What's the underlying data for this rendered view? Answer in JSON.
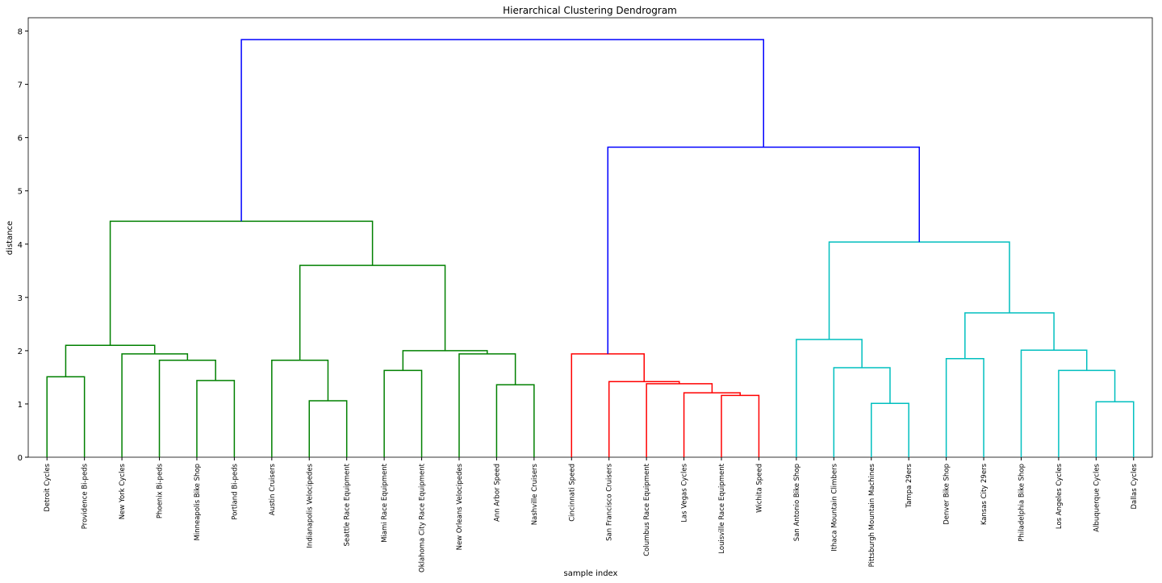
{
  "chart_data": {
    "type": "dendrogram",
    "title": "Hierarchical Clustering Dendrogram",
    "x_label": "sample index",
    "y_label": "distance",
    "ylim": [
      0,
      8.25
    ],
    "yticks": [
      0,
      1,
      2,
      3,
      4,
      5,
      6,
      7,
      8
    ],
    "tree": {
      "height": 7.84,
      "color": "#0000ff",
      "children": [
        {
          "height": 4.43,
          "color": "#008000",
          "children": [
            {
              "height": 2.1,
              "color": "#008000",
              "children": [
                {
                  "height": 1.51,
                  "color": "#008000",
                  "children": [
                    {
                      "label": "Detroit Cycles"
                    },
                    {
                      "label": "Providence Bi-peds"
                    }
                  ]
                },
                {
                  "height": 1.94,
                  "color": "#008000",
                  "children": [
                    {
                      "label": "New York Cycles"
                    },
                    {
                      "height": 1.82,
                      "color": "#008000",
                      "children": [
                        {
                          "label": "Phoenix Bi-peds"
                        },
                        {
                          "height": 1.44,
                          "color": "#008000",
                          "children": [
                            {
                              "label": "Minneapolis Bike Shop"
                            },
                            {
                              "label": "Portland Bi-peds"
                            }
                          ]
                        }
                      ]
                    }
                  ]
                }
              ]
            },
            {
              "height": 3.6,
              "color": "#008000",
              "children": [
                {
                  "height": 1.82,
                  "color": "#008000",
                  "children": [
                    {
                      "label": "Austin Cruisers"
                    },
                    {
                      "height": 1.06,
                      "color": "#008000",
                      "children": [
                        {
                          "label": "Indianapolis Velocipedes"
                        },
                        {
                          "label": "Seattle Race Equipment"
                        }
                      ]
                    }
                  ]
                },
                {
                  "height": 2.0,
                  "color": "#008000",
                  "children": [
                    {
                      "height": 1.63,
                      "color": "#008000",
                      "children": [
                        {
                          "label": "Miami Race Equipment"
                        },
                        {
                          "label": "Oklahoma City Race Equipment"
                        }
                      ]
                    },
                    {
                      "height": 1.94,
                      "color": "#008000",
                      "children": [
                        {
                          "label": "New Orleans Velocipedes"
                        },
                        {
                          "height": 1.36,
                          "color": "#008000",
                          "children": [
                            {
                              "label": "Ann Arbor Speed"
                            },
                            {
                              "label": "Nashville Cruisers"
                            }
                          ]
                        }
                      ]
                    }
                  ]
                }
              ]
            }
          ]
        },
        {
          "height": 5.82,
          "color": "#0000ff",
          "children": [
            {
              "height": 1.94,
              "color": "#ff0000",
              "children": [
                {
                  "label": "Cincinnati Speed"
                },
                {
                  "height": 1.42,
                  "color": "#ff0000",
                  "children": [
                    {
                      "label": "San Francisco Cruisers"
                    },
                    {
                      "height": 1.38,
                      "color": "#ff0000",
                      "children": [
                        {
                          "label": "Columbus Race Equipment"
                        },
                        {
                          "height": 1.21,
                          "color": "#ff0000",
                          "children": [
                            {
                              "label": "Las Vegas Cycles"
                            },
                            {
                              "height": 1.16,
                              "color": "#ff0000",
                              "children": [
                                {
                                  "label": "Louisville Race Equipment"
                                },
                                {
                                  "label": "Wichita Speed"
                                }
                              ]
                            }
                          ]
                        }
                      ]
                    }
                  ]
                }
              ]
            },
            {
              "height": 4.04,
              "color": "#00bfbf",
              "children": [
                {
                  "height": 2.21,
                  "color": "#00bfbf",
                  "children": [
                    {
                      "label": "San Antonio Bike Shop"
                    },
                    {
                      "height": 1.68,
                      "color": "#00bfbf",
                      "children": [
                        {
                          "label": "Ithaca Mountain Climbers"
                        },
                        {
                          "height": 1.01,
                          "color": "#00bfbf",
                          "children": [
                            {
                              "label": "Pittsburgh Mountain Machines"
                            },
                            {
                              "label": "Tampa 29ers"
                            }
                          ]
                        }
                      ]
                    }
                  ]
                },
                {
                  "height": 2.71,
                  "color": "#00bfbf",
                  "children": [
                    {
                      "height": 1.85,
                      "color": "#00bfbf",
                      "children": [
                        {
                          "label": "Denver Bike Shop"
                        },
                        {
                          "label": "Kansas City 29ers"
                        }
                      ]
                    },
                    {
                      "height": 2.01,
                      "color": "#00bfbf",
                      "children": [
                        {
                          "label": "Philadelphia Bike Shop"
                        },
                        {
                          "height": 1.63,
                          "color": "#00bfbf",
                          "children": [
                            {
                              "label": "Los Angeles Cycles"
                            },
                            {
                              "height": 1.04,
                              "color": "#00bfbf",
                              "children": [
                                {
                                  "label": "Albuquerque Cycles"
                                },
                                {
                                  "label": "Dallas Cycles"
                                }
                              ]
                            }
                          ]
                        }
                      ]
                    }
                  ]
                }
              ]
            }
          ]
        }
      ]
    }
  }
}
